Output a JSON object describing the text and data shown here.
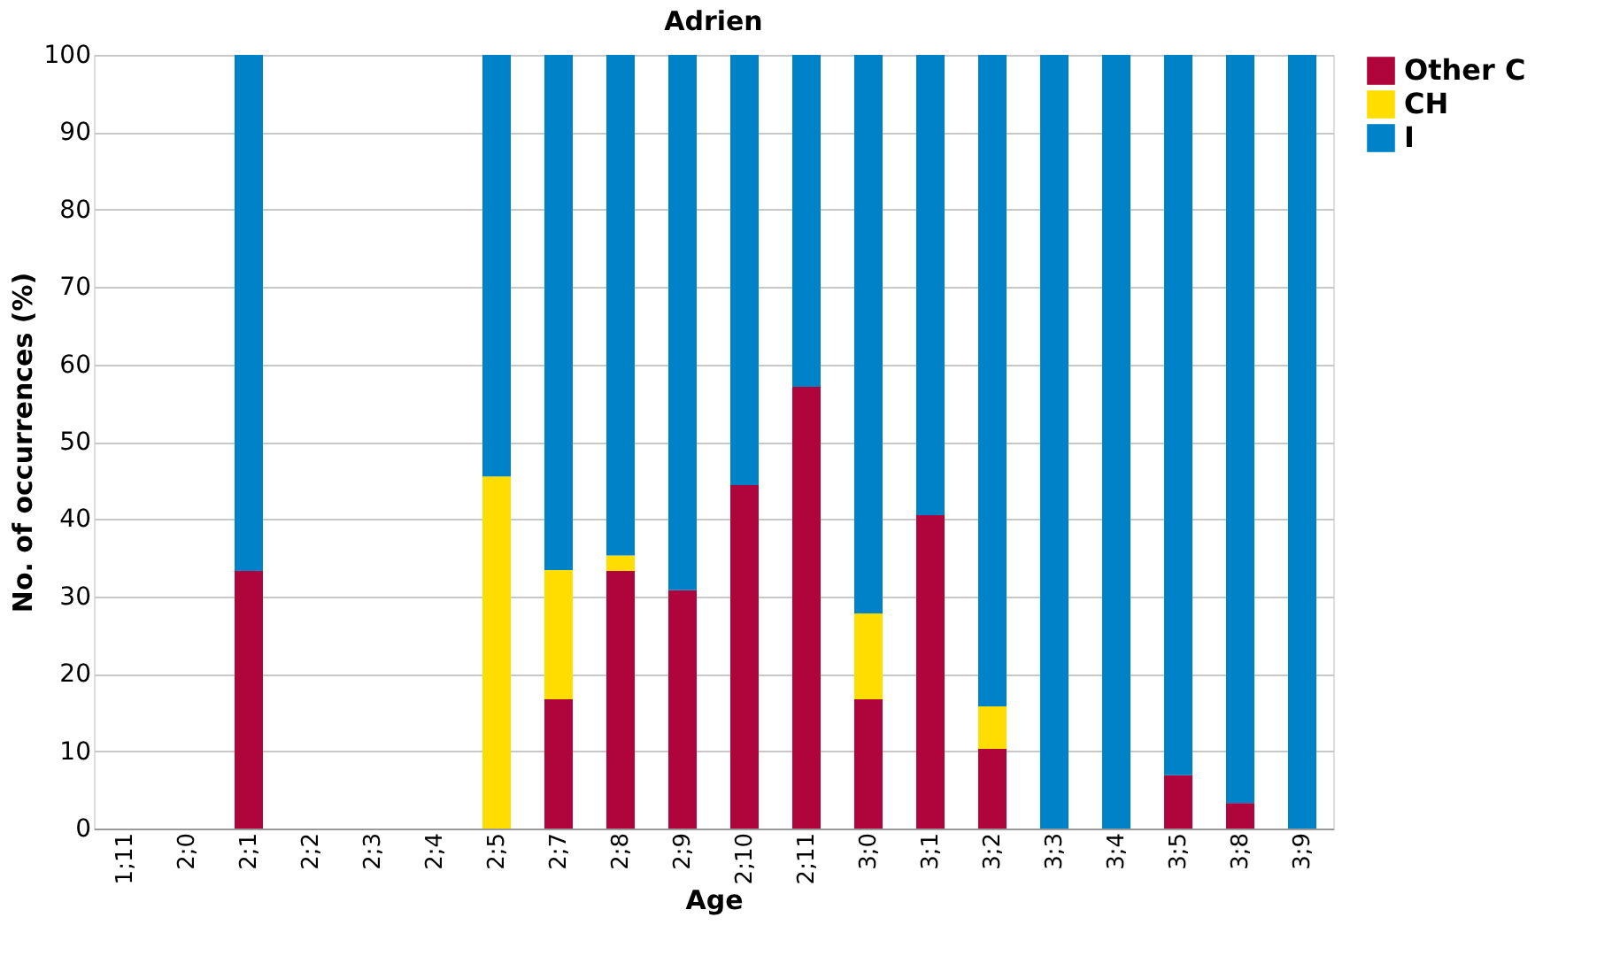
{
  "chart_data": {
    "type": "bar",
    "title": "Adrien",
    "xlabel": "Age",
    "ylabel": "No. of occurrences (%)",
    "categories": [
      "1;11",
      "2;0",
      "2;1",
      "2;2",
      "2;3",
      "2;4",
      "2;5",
      "2;7",
      "2;8",
      "2;9",
      "2;10",
      "2;11",
      "3;0",
      "3;1",
      "3;2",
      "3;3",
      "3;4",
      "3;5",
      "3;8",
      "3;9"
    ],
    "stacked": true,
    "series": [
      {
        "name": "Other C",
        "color": "#b0053c",
        "values": [
          0,
          0,
          33.3,
          0,
          0,
          0,
          0,
          16.7,
          33.3,
          30.8,
          44.4,
          57.1,
          16.7,
          40.5,
          10.3,
          0,
          0,
          6.9,
          3.3,
          0
        ]
      },
      {
        "name": "CH",
        "color": "#ffdd00",
        "values": [
          0,
          0,
          0,
          0,
          0,
          0,
          45.5,
          16.7,
          2,
          0,
          0,
          0,
          11.1,
          0,
          5.5,
          0,
          0,
          0,
          0,
          0
        ]
      },
      {
        "name": "I",
        "color": "#0082c8",
        "values": [
          0,
          0,
          66.7,
          0,
          0,
          0,
          54.5,
          66.6,
          64.7,
          69.2,
          55.6,
          42.9,
          72.2,
          59.5,
          84.2,
          100,
          100,
          93.1,
          96.7,
          100
        ]
      }
    ],
    "ylim": [
      0,
      100
    ],
    "yticks": [
      0,
      10,
      20,
      30,
      40,
      50,
      60,
      70,
      80,
      90,
      100
    ],
    "grid": "y",
    "legend": "top right"
  }
}
